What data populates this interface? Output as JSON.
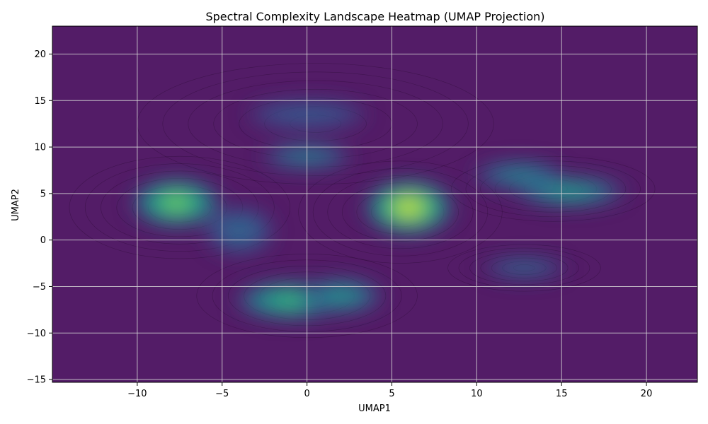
{
  "chart_data": {
    "type": "heatmap",
    "title": "Spectral Complexity Landscape Heatmap (UMAP Projection)",
    "xlabel": "UMAP1",
    "ylabel": "UMAP2",
    "xlim": [
      -15,
      23
    ],
    "ylim": [
      -15.3,
      23
    ],
    "x_ticks": [
      -10,
      -5,
      0,
      5,
      10,
      15,
      20
    ],
    "y_ticks": [
      -15,
      -10,
      -5,
      0,
      5,
      10,
      15,
      20
    ],
    "x_tick_labels": [
      "−10",
      "−5",
      "0",
      "5",
      "10",
      "15",
      "20"
    ],
    "y_tick_labels": [
      "−15",
      "−10",
      "−5",
      "0",
      "5",
      "10",
      "15",
      "20"
    ],
    "grid": true,
    "colormap": "viridis",
    "background_color": "#531c67",
    "density_peaks": [
      {
        "x": 6.0,
        "y": 3.5,
        "intensity": 1.0
      },
      {
        "x": -7.7,
        "y": 4.0,
        "intensity": 0.8
      },
      {
        "x": -1.0,
        "y": -6.5,
        "intensity": 0.65
      },
      {
        "x": 2.0,
        "y": -6.0,
        "intensity": 0.45
      },
      {
        "x": 15.5,
        "y": 5.2,
        "intensity": 0.5
      },
      {
        "x": 12.5,
        "y": 7.0,
        "intensity": 0.35
      },
      {
        "x": 0.0,
        "y": 9.0,
        "intensity": 0.3
      },
      {
        "x": 12.8,
        "y": -3.0,
        "intensity": 0.2
      },
      {
        "x": -4.0,
        "y": 1.0,
        "intensity": 0.15
      },
      {
        "x": 0.0,
        "y": 13.5,
        "intensity": 0.08
      }
    ]
  }
}
